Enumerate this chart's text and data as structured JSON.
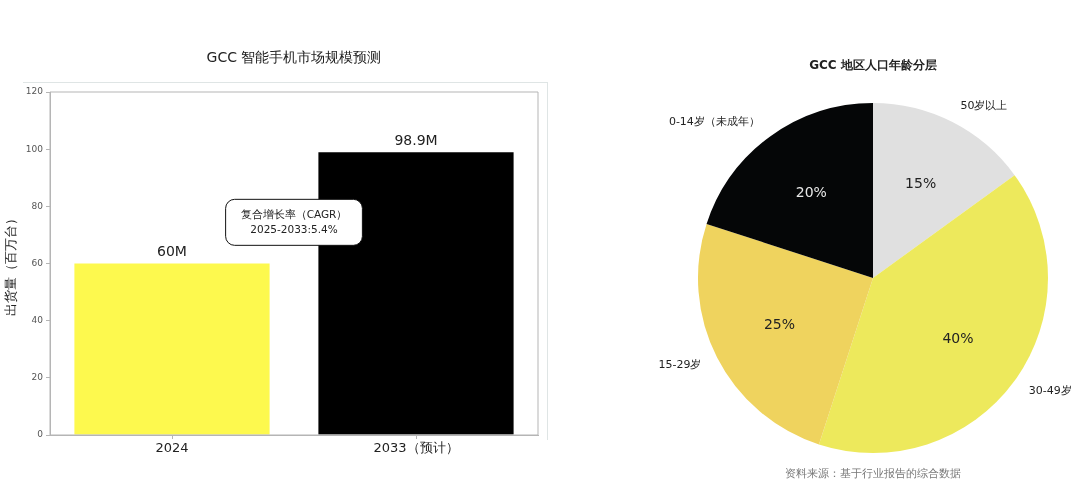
{
  "chart_data": [
    {
      "type": "bar",
      "title": "GCC 智能手机市场规模预测",
      "ylabel": "出货量（百万台）",
      "categories": [
        "2024",
        "2033（预计）"
      ],
      "values": [
        60,
        98.9
      ],
      "colors": [
        "#fdf94e",
        "#000000"
      ],
      "value_labels": [
        "60M",
        "98.9M"
      ],
      "ylim": [
        0,
        120
      ],
      "yticks": [
        0,
        20,
        40,
        60,
        80,
        100,
        120
      ],
      "annotations": [
        "复合增长率（CAGR）\n2025-2033:5.4%"
      ]
    },
    {
      "type": "pie",
      "title": "GCC 地区人口年龄分层",
      "categories": [
        "50岁以上",
        "30-49岁",
        "15-29岁",
        "0-14岁（未成年）"
      ],
      "values": [
        15,
        40,
        25,
        20
      ],
      "colors": [
        "#e0e0e0",
        "#ede95c",
        "#efd35e",
        "#050607"
      ],
      "value_labels": [
        "15%",
        "40%",
        "25%",
        "20%"
      ],
      "annotations": [
        "资料来源：基于行业报告的综合数据"
      ]
    }
  ]
}
